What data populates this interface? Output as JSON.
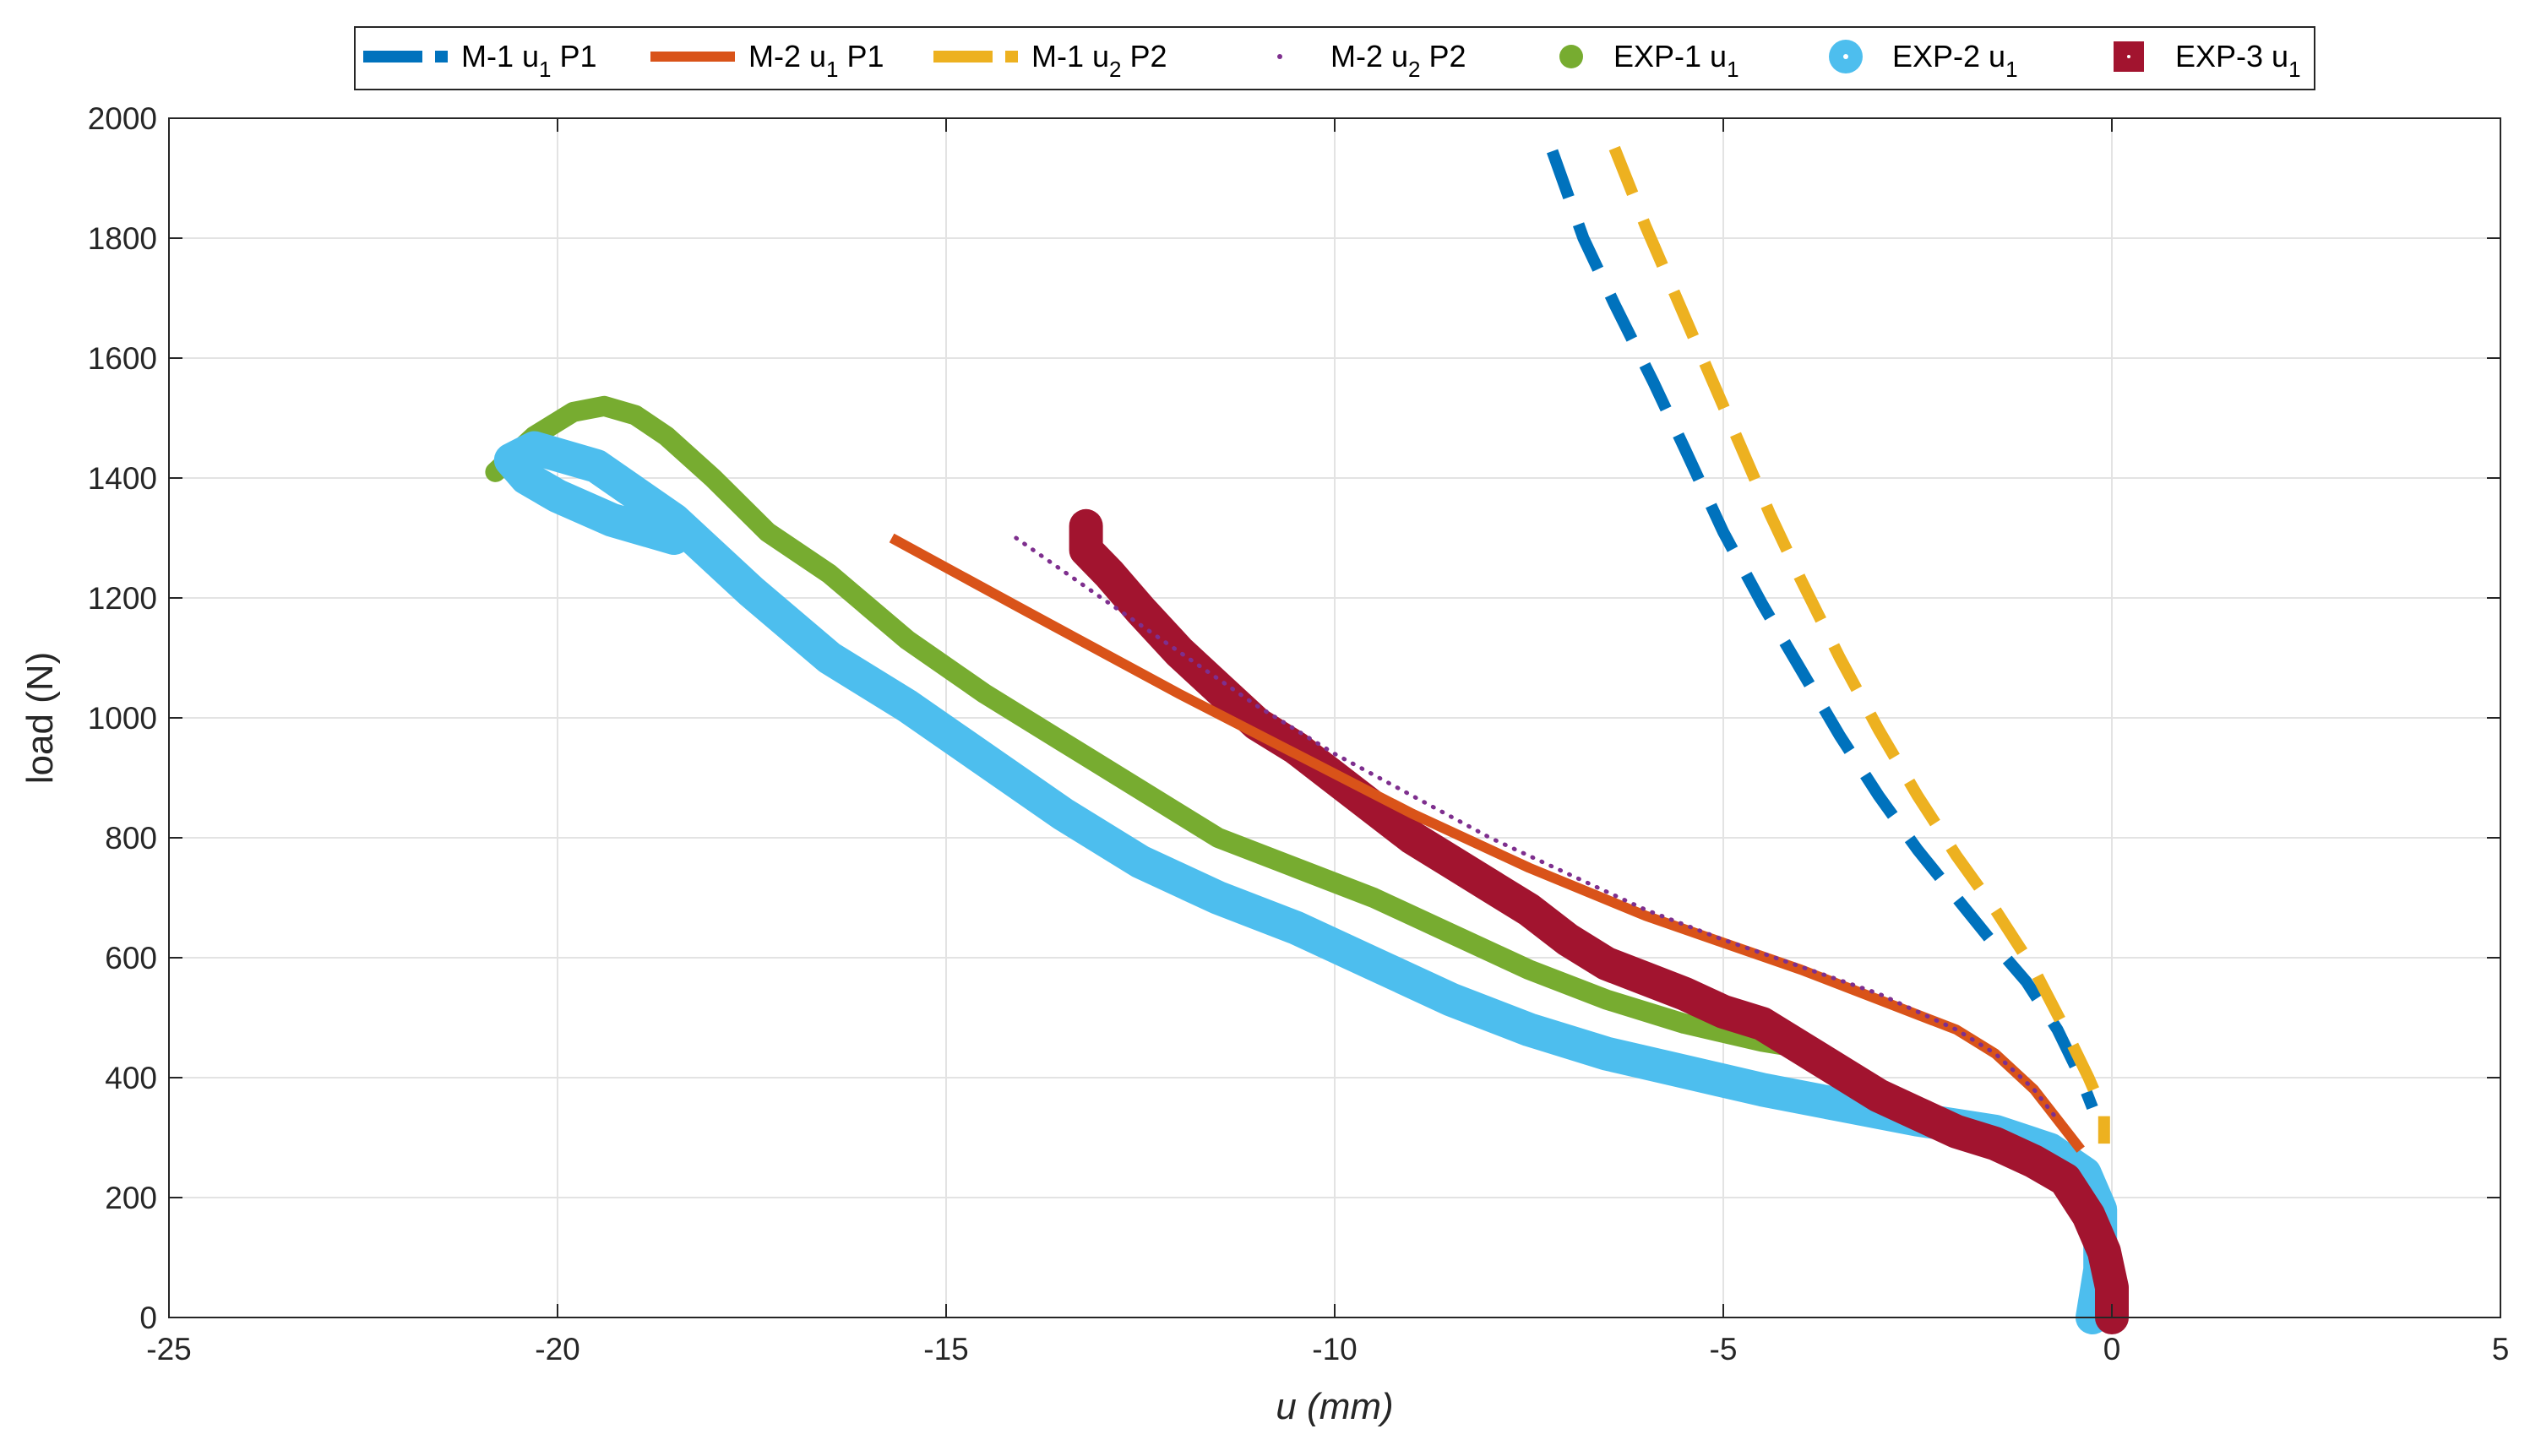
{
  "chart_data": {
    "type": "line",
    "title": "",
    "xlabel": "u (mm)",
    "ylabel": "load (N)",
    "xlim": [
      -25,
      5
    ],
    "ylim": [
      0,
      2000
    ],
    "xticks": [
      -25,
      -20,
      -15,
      -10,
      -5,
      0,
      5
    ],
    "yticks": [
      0,
      200,
      400,
      600,
      800,
      1000,
      1200,
      1400,
      1600,
      1800,
      2000
    ],
    "grid": true,
    "legend_position": "top",
    "series": [
      {
        "name": "M-1 u1 P1",
        "legend_main": "M-1 u",
        "legend_sub": "1",
        "legend_tail": " P1",
        "color": "#0072BD",
        "style": "dashed",
        "x": [
          -7.2,
          -6.8,
          -6.4,
          -5.9,
          -5.5,
          -5.0,
          -4.5,
          -4.0,
          -3.5,
          -3.0,
          -2.5,
          -2.0,
          -1.5,
          -1.1,
          -0.7,
          -0.4,
          -0.25
        ],
        "y": [
          1945,
          1800,
          1690,
          1560,
          1450,
          1310,
          1190,
          1080,
          970,
          870,
          780,
          700,
          620,
          560,
          480,
          400,
          350
        ]
      },
      {
        "name": "M-2 u1 P1",
        "legend_main": "M-2 u",
        "legend_sub": "1",
        "legend_tail": " P1",
        "color": "#D95319",
        "style": "solid",
        "x": [
          -15.7,
          -14.0,
          -12.0,
          -10.5,
          -9.0,
          -7.5,
          -6.0,
          -5.0,
          -4.0,
          -3.0,
          -2.0,
          -1.5,
          -1.0,
          -0.7,
          -0.4
        ],
        "y": [
          1300,
          1180,
          1040,
          940,
          840,
          750,
          670,
          625,
          580,
          530,
          480,
          440,
          380,
          330,
          280
        ]
      },
      {
        "name": "M-1 u2 P2",
        "legend_main": "M-1 u",
        "legend_sub": "2",
        "legend_tail": " P2",
        "color": "#EDB120",
        "style": "dashed",
        "x": [
          -6.4,
          -6.0,
          -5.6,
          -5.2,
          -4.8,
          -4.4,
          -4.0,
          -3.5,
          -3.0,
          -2.5,
          -2.0,
          -1.5,
          -1.0,
          -0.6,
          -0.3,
          -0.1,
          -0.1
        ],
        "y": [
          1950,
          1820,
          1700,
          1580,
          1460,
          1340,
          1230,
          1100,
          980,
          870,
          770,
          680,
          580,
          480,
          400,
          340,
          290
        ]
      },
      {
        "name": "M-2 u2 P2",
        "legend_main": "M-2 u",
        "legend_sub": "2",
        "legend_tail": " P2",
        "color": "#7E2F8E",
        "style": "dotted",
        "x": [
          -14.1,
          -13.0,
          -12.0,
          -11.0,
          -10.0,
          -9.0,
          -8.0,
          -7.0,
          -6.0,
          -5.0,
          -4.0,
          -3.0,
          -2.0,
          -1.5,
          -1.0,
          -0.7
        ],
        "y": [
          1300,
          1200,
          1110,
          1020,
          940,
          870,
          800,
          740,
          680,
          630,
          585,
          540,
          480,
          440,
          380,
          330
        ]
      },
      {
        "name": "EXP-1 u1",
        "legend_main": "EXP-1 u",
        "legend_sub": "1",
        "legend_tail": "",
        "color": "#77AC30",
        "style": "thick",
        "x": [
          -20.8,
          -20.3,
          -19.8,
          -19.4,
          -19.0,
          -18.6,
          -18.0,
          -17.3,
          -16.5,
          -15.5,
          -14.5,
          -13.5,
          -12.5,
          -11.5,
          -10.5,
          -9.5,
          -8.5,
          -7.5,
          -6.5,
          -5.5,
          -4.5,
          -3.8
        ],
        "y": [
          1410,
          1470,
          1510,
          1520,
          1505,
          1470,
          1400,
          1310,
          1240,
          1130,
          1040,
          960,
          880,
          800,
          750,
          700,
          640,
          580,
          530,
          490,
          460,
          445
        ]
      },
      {
        "name": "EXP-2 u1",
        "legend_main": "EXP-2 u",
        "legend_sub": "1",
        "legend_tail": "",
        "color": "#4DBEEE",
        "style": "thick",
        "x": [
          -18.5,
          -19.3,
          -20.0,
          -20.4,
          -20.6,
          -20.3,
          -19.5,
          -18.5,
          -17.5,
          -16.5,
          -15.5,
          -14.5,
          -13.5,
          -12.5,
          -11.5,
          -10.5,
          -9.5,
          -8.5,
          -7.5,
          -6.5,
          -5.5,
          -4.5,
          -3.5,
          -2.5,
          -1.5,
          -0.8,
          -0.35,
          -0.15,
          -0.15,
          -0.25
        ],
        "y": [
          1300,
          1330,
          1370,
          1400,
          1430,
          1450,
          1420,
          1330,
          1210,
          1100,
          1020,
          930,
          840,
          760,
          700,
          650,
          590,
          530,
          480,
          440,
          410,
          380,
          355,
          330,
          310,
          280,
          240,
          180,
          80,
          0
        ]
      },
      {
        "name": "EXP-3 u1",
        "legend_main": "EXP-3 u",
        "legend_sub": "1",
        "legend_tail": "",
        "color": "#A2142F",
        "style": "thick",
        "x": [
          -13.2,
          -13.2,
          -12.9,
          -12.5,
          -12.0,
          -11.5,
          -11.0,
          -10.5,
          -10.0,
          -9.5,
          -9.0,
          -8.5,
          -8.0,
          -7.5,
          -7.0,
          -6.5,
          -6.0,
          -5.5,
          -5.0,
          -4.5,
          -4.0,
          -3.5,
          -3.0,
          -2.5,
          -2.0,
          -1.5,
          -1.0,
          -0.6,
          -0.3,
          -0.1,
          0.0,
          0.0
        ],
        "y": [
          1320,
          1280,
          1240,
          1180,
          1110,
          1050,
          990,
          950,
          900,
          850,
          800,
          760,
          720,
          680,
          630,
          590,
          565,
          540,
          510,
          490,
          450,
          410,
          370,
          340,
          310,
          290,
          260,
          230,
          170,
          110,
          50,
          0
        ]
      }
    ]
  }
}
